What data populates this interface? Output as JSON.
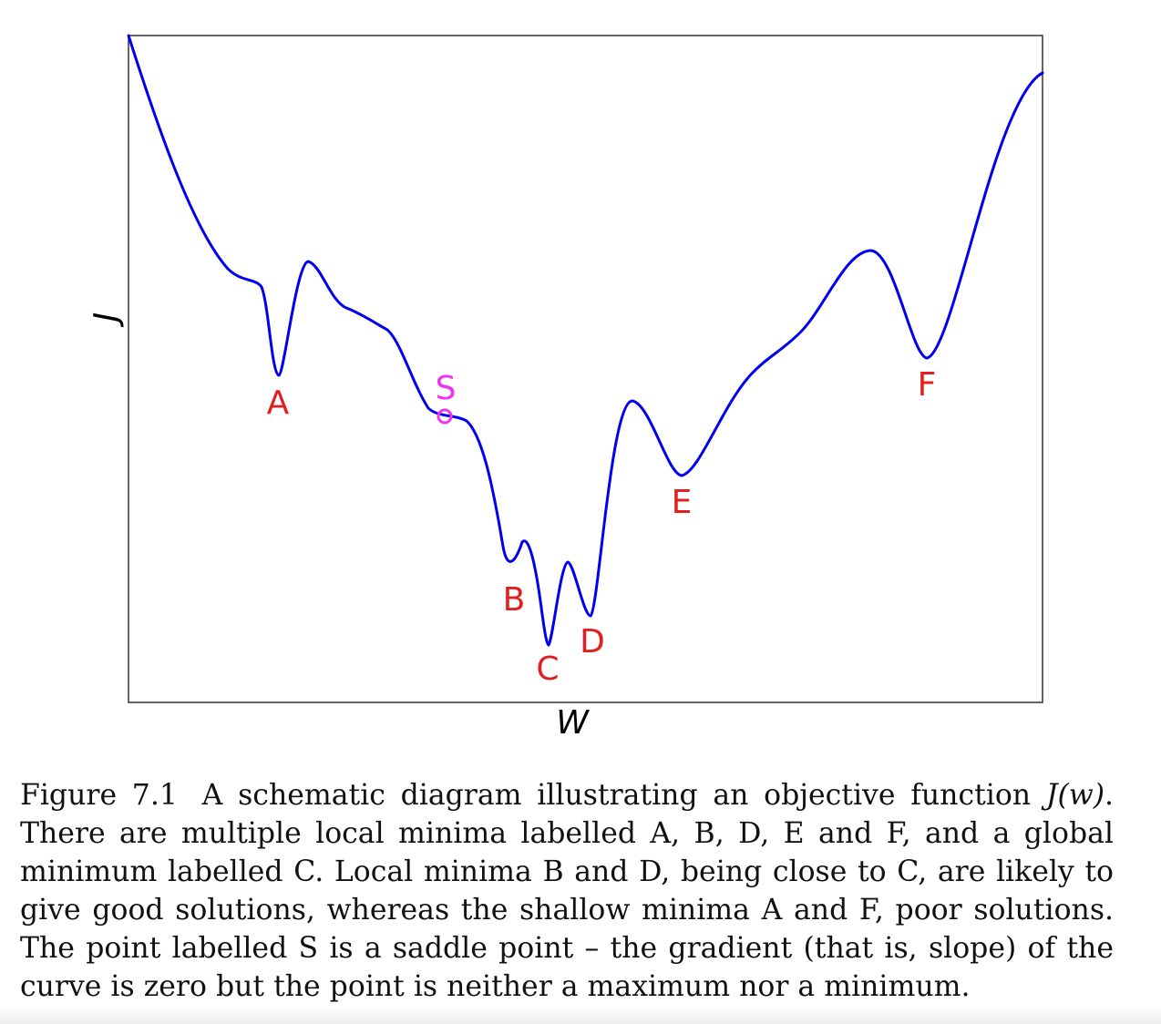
{
  "figure": {
    "xlabel": "W",
    "ylabel": "J",
    "curve_color": "#0000ee",
    "label_color": "#e02020",
    "saddle_color": "#ee33ee",
    "points": {
      "A": "A",
      "B": "B",
      "C": "C",
      "D": "D",
      "E": "E",
      "F": "F",
      "S": "S"
    }
  },
  "caption": {
    "figure_label": "Figure 7.1",
    "text_before_math": "A schematic diagram illustrating an objective function",
    "math": "J(w)",
    "text_after_math": ". There are multiple local minima labelled A, B, D, E and F, and a global minimum labelled C. Local minima B and D, being close to C, are likely to give good solutions, whereas the shallow minima A and F, poor solutions. The point labelled S is a saddle point – the gradient (that is, slope) of the curve is zero but the point is neither a maximum nor a minimum."
  }
}
